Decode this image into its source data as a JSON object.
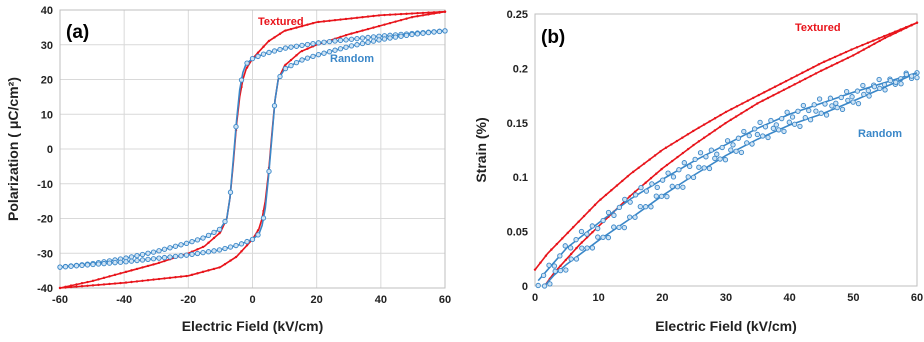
{
  "chart_data": [
    {
      "type": "line",
      "panel_label": "(a)",
      "xlabel": "Electric Field (kV/cm)",
      "ylabel": "Polarization ( μC/cm²)",
      "xlim": [
        -60,
        60
      ],
      "ylim": [
        -40,
        40
      ],
      "x_ticks": [
        -60,
        -40,
        -20,
        0,
        20,
        40,
        60
      ],
      "y_ticks": [
        -40,
        -30,
        -20,
        -10,
        0,
        10,
        20,
        30,
        40
      ],
      "grid": true,
      "series": [
        {
          "name": "Textured",
          "color": "#e8141b",
          "marker": "dot",
          "branches": [
            {
              "x": [
                60,
                40,
                20,
                10,
                5,
                2,
                0,
                -2,
                -3,
                -4,
                -5,
                -6,
                -7,
                -8,
                -10,
                -15,
                -20,
                -30,
                -40,
                -50,
                -60
              ],
              "y": [
                39.5,
                38.5,
                36.5,
                34,
                31,
                28,
                26,
                23,
                20,
                15,
                7,
                -4,
                -14,
                -20,
                -24,
                -28,
                -30,
                -33,
                -35.5,
                -38,
                -40
              ]
            },
            {
              "x": [
                -60,
                -40,
                -20,
                -10,
                -5,
                -2,
                0,
                2,
                3,
                4,
                5,
                6,
                7,
                8,
                10,
                15,
                20,
                30,
                40,
                50,
                60
              ],
              "y": [
                -40,
                -38.5,
                -36.5,
                -34,
                -31,
                -28,
                -26,
                -23,
                -20,
                -15,
                -7,
                4,
                14,
                20,
                24,
                28,
                30,
                33,
                35.5,
                38,
                39.5
              ]
            }
          ]
        },
        {
          "name": "Random",
          "color": "#3a87c8",
          "marker": "circle",
          "branches": [
            {
              "x": [
                60,
                40,
                20,
                10,
                4,
                0,
                -2,
                -3,
                -4,
                -5,
                -6,
                -7,
                -8,
                -10,
                -15,
                -20,
                -30,
                -40,
                -50,
                -60
              ],
              "y": [
                34,
                32.5,
                30.5,
                29,
                27.5,
                26,
                24.5,
                22,
                17,
                8,
                -3,
                -14,
                -20,
                -23,
                -25.5,
                -27,
                -29.5,
                -31.5,
                -33,
                -34
              ]
            },
            {
              "x": [
                -60,
                -40,
                -20,
                -10,
                -4,
                0,
                2,
                3,
                4,
                5,
                6,
                7,
                8,
                10,
                15,
                20,
                30,
                40,
                50,
                60
              ],
              "y": [
                -34,
                -32.5,
                -30.5,
                -29,
                -27.5,
                -26,
                -24.5,
                -22,
                -17,
                -8,
                3,
                14,
                20,
                23,
                25.5,
                27,
                29.5,
                31.5,
                33,
                34
              ]
            }
          ]
        }
      ]
    },
    {
      "type": "scatter",
      "panel_label": "(b)",
      "xlabel": "Electric Field (kV/cm)",
      "ylabel": "Strain (%)",
      "xlim": [
        0,
        60
      ],
      "ylim": [
        0,
        0.25
      ],
      "x_ticks": [
        0,
        10,
        20,
        30,
        40,
        50,
        60
      ],
      "y_ticks": [
        0,
        0.05,
        0.1,
        0.15,
        0.2,
        0.25
      ],
      "y_tick_labels": [
        "0",
        "0.05",
        "0.1",
        "0.15",
        "0.2",
        "0.25"
      ],
      "grid": false,
      "series": [
        {
          "name": "Textured",
          "color": "#e8141b",
          "marker": "dot",
          "branches": [
            {
              "x": [
                0,
                2,
                5,
                10,
                15,
                20,
                25,
                30,
                35,
                40,
                45,
                50,
                55,
                60
              ],
              "y": [
                0.015,
                0.03,
                0.048,
                0.078,
                0.103,
                0.125,
                0.143,
                0.16,
                0.175,
                0.19,
                0.205,
                0.218,
                0.23,
                0.242
              ]
            },
            {
              "x": [
                60,
                55,
                50,
                45,
                40,
                35,
                30,
                25,
                20,
                15,
                10,
                7,
                5,
                3,
                1.5
              ],
              "y": [
                0.242,
                0.228,
                0.212,
                0.198,
                0.183,
                0.168,
                0.15,
                0.13,
                0.108,
                0.083,
                0.055,
                0.038,
                0.025,
                0.012,
                0
              ]
            }
          ]
        },
        {
          "name": "Random",
          "color": "#3a87c8",
          "marker": "circle",
          "branches": [
            {
              "x": [
                0.5,
                2,
                5,
                10,
                15,
                20,
                25,
                30,
                35,
                40,
                45,
                50,
                55,
                60
              ],
              "y": [
                0.005,
                0.015,
                0.035,
                0.058,
                0.08,
                0.098,
                0.115,
                0.13,
                0.145,
                0.158,
                0.168,
                0.178,
                0.187,
                0.196
              ]
            },
            {
              "x": [
                60,
                55,
                50,
                45,
                40,
                35,
                30,
                25,
                20,
                15,
                10,
                5,
                3,
                1.5
              ],
              "y": [
                0.196,
                0.183,
                0.17,
                0.158,
                0.148,
                0.135,
                0.12,
                0.102,
                0.083,
                0.062,
                0.042,
                0.02,
                0.01,
                0
              ]
            }
          ]
        }
      ]
    }
  ]
}
